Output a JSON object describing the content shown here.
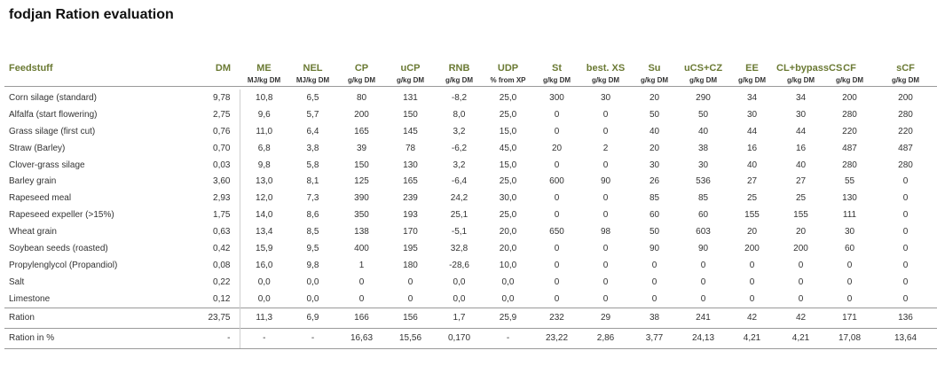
{
  "title": "fodjan Ration evaluation",
  "columns": [
    {
      "key": "feedstuff",
      "label": "Feedstuff",
      "unit": ""
    },
    {
      "key": "dm",
      "label": "DM",
      "unit": ""
    },
    {
      "key": "me",
      "label": "ME",
      "unit": "MJ/kg DM"
    },
    {
      "key": "nel",
      "label": "NEL",
      "unit": "MJ/kg DM"
    },
    {
      "key": "cp",
      "label": "CP",
      "unit": "g/kg DM"
    },
    {
      "key": "ucp",
      "label": "uCP",
      "unit": "g/kg DM"
    },
    {
      "key": "rnb",
      "label": "RNB",
      "unit": "g/kg DM"
    },
    {
      "key": "udp",
      "label": "UDP",
      "unit": "% from XP"
    },
    {
      "key": "st",
      "label": "St",
      "unit": "g/kg DM"
    },
    {
      "key": "bestxs",
      "label": "best. XS",
      "unit": "g/kg DM"
    },
    {
      "key": "su",
      "label": "Su",
      "unit": "g/kg DM"
    },
    {
      "key": "ucscz",
      "label": "uCS+CZ",
      "unit": "g/kg DM"
    },
    {
      "key": "ee",
      "label": "EE",
      "unit": "g/kg DM"
    },
    {
      "key": "clbypass",
      "label": "CL+bypassCS",
      "unit": "g/kg DM"
    },
    {
      "key": "cf",
      "label": "CF",
      "unit": "g/kg DM"
    },
    {
      "key": "scf",
      "label": "sCF",
      "unit": "g/kg DM"
    }
  ],
  "rows": [
    {
      "name": "Corn silage (standard)",
      "values": [
        "9,78",
        "10,8",
        "6,5",
        "80",
        "131",
        "-8,2",
        "25,0",
        "300",
        "30",
        "20",
        "290",
        "34",
        "34",
        "200",
        "200"
      ]
    },
    {
      "name": "Alfalfa (start flowering)",
      "values": [
        "2,75",
        "9,6",
        "5,7",
        "200",
        "150",
        "8,0",
        "25,0",
        "0",
        "0",
        "50",
        "50",
        "30",
        "30",
        "280",
        "280"
      ]
    },
    {
      "name": "Grass silage (first cut)",
      "values": [
        "0,76",
        "11,0",
        "6,4",
        "165",
        "145",
        "3,2",
        "15,0",
        "0",
        "0",
        "40",
        "40",
        "44",
        "44",
        "220",
        "220"
      ]
    },
    {
      "name": "Straw (Barley)",
      "values": [
        "0,70",
        "6,8",
        "3,8",
        "39",
        "78",
        "-6,2",
        "45,0",
        "20",
        "2",
        "20",
        "38",
        "16",
        "16",
        "487",
        "487"
      ]
    },
    {
      "name": "Clover-grass silage",
      "values": [
        "0,03",
        "9,8",
        "5,8",
        "150",
        "130",
        "3,2",
        "15,0",
        "0",
        "0",
        "30",
        "30",
        "40",
        "40",
        "280",
        "280"
      ]
    },
    {
      "name": "Barley grain",
      "values": [
        "3,60",
        "13,0",
        "8,1",
        "125",
        "165",
        "-6,4",
        "25,0",
        "600",
        "90",
        "26",
        "536",
        "27",
        "27",
        "55",
        "0"
      ]
    },
    {
      "name": "Rapeseed meal",
      "values": [
        "2,93",
        "12,0",
        "7,3",
        "390",
        "239",
        "24,2",
        "30,0",
        "0",
        "0",
        "85",
        "85",
        "25",
        "25",
        "130",
        "0"
      ]
    },
    {
      "name": "Rapeseed expeller (>15%)",
      "values": [
        "1,75",
        "14,0",
        "8,6",
        "350",
        "193",
        "25,1",
        "25,0",
        "0",
        "0",
        "60",
        "60",
        "155",
        "155",
        "111",
        "0"
      ]
    },
    {
      "name": "Wheat grain",
      "values": [
        "0,63",
        "13,4",
        "8,5",
        "138",
        "170",
        "-5,1",
        "20,0",
        "650",
        "98",
        "50",
        "603",
        "20",
        "20",
        "30",
        "0"
      ]
    },
    {
      "name": "Soybean seeds (roasted)",
      "values": [
        "0,42",
        "15,9",
        "9,5",
        "400",
        "195",
        "32,8",
        "20,0",
        "0",
        "0",
        "90",
        "90",
        "200",
        "200",
        "60",
        "0"
      ]
    },
    {
      "name": "Propylenglycol (Propandiol)",
      "values": [
        "0,08",
        "16,0",
        "9,8",
        "1",
        "180",
        "-28,6",
        "10,0",
        "0",
        "0",
        "0",
        "0",
        "0",
        "0",
        "0",
        "0"
      ]
    },
    {
      "name": "Salt",
      "values": [
        "0,22",
        "0,0",
        "0,0",
        "0",
        "0",
        "0,0",
        "0,0",
        "0",
        "0",
        "0",
        "0",
        "0",
        "0",
        "0",
        "0"
      ]
    },
    {
      "name": "Limestone",
      "values": [
        "0,12",
        "0,0",
        "0,0",
        "0",
        "0",
        "0,0",
        "0,0",
        "0",
        "0",
        "0",
        "0",
        "0",
        "0",
        "0",
        "0"
      ]
    }
  ],
  "ration": {
    "name": "Ration",
    "values": [
      "23,75",
      "11,3",
      "6,9",
      "166",
      "156",
      "1,7",
      "25,9",
      "232",
      "29",
      "38",
      "241",
      "42",
      "42",
      "171",
      "136"
    ]
  },
  "ration_pct": {
    "name": "Ration in %",
    "values": [
      "-",
      "-",
      "-",
      "16,63",
      "15,56",
      "0,170",
      "-",
      "23,22",
      "2,86",
      "3,77",
      "24,13",
      "4,21",
      "4,21",
      "17,08",
      "13,64"
    ]
  }
}
